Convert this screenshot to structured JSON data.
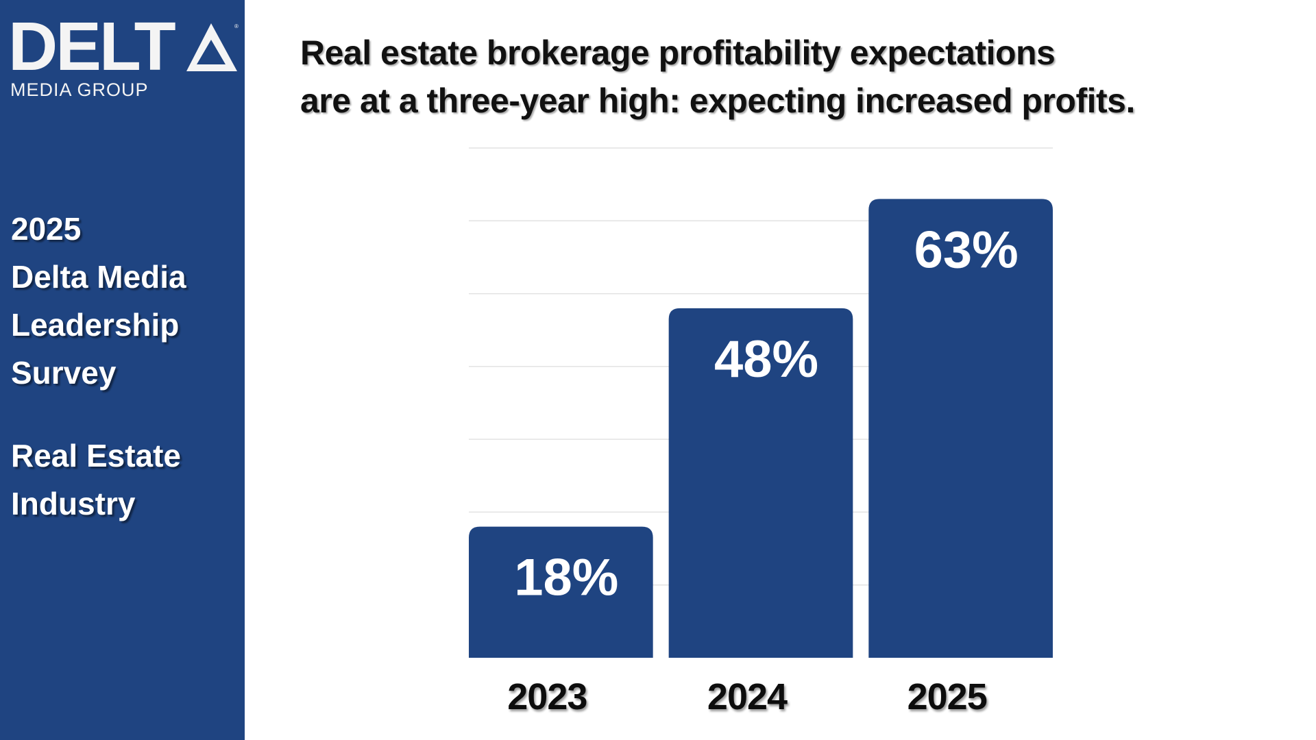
{
  "logo": {
    "name": "DELTA",
    "registered": "®",
    "subtitle": "MEDIA GROUP"
  },
  "sidebar": {
    "survey_lines": [
      "2025",
      "Delta Media",
      "Leadership",
      "Survey"
    ],
    "industry_lines": [
      "Real Estate",
      "Industry"
    ]
  },
  "title_lines": [
    "Real estate brokerage profitability expectations",
    "are at a three-year high: expecting increased profits."
  ],
  "colors": {
    "brand": "#1f4481",
    "bar": "#1f4481",
    "grid": "#e2e2e2"
  },
  "chart_data": {
    "type": "bar",
    "title": "Real estate brokerage profitability expectations are at a three-year high: expecting increased profits.",
    "categories": [
      "2023",
      "2024",
      "2025"
    ],
    "values": [
      18,
      48,
      63
    ],
    "data_labels": [
      "18%",
      "48%",
      "63%"
    ],
    "xlabel": "",
    "ylabel": "",
    "ylim": [
      0,
      70
    ],
    "grid": true,
    "legend": "none"
  }
}
